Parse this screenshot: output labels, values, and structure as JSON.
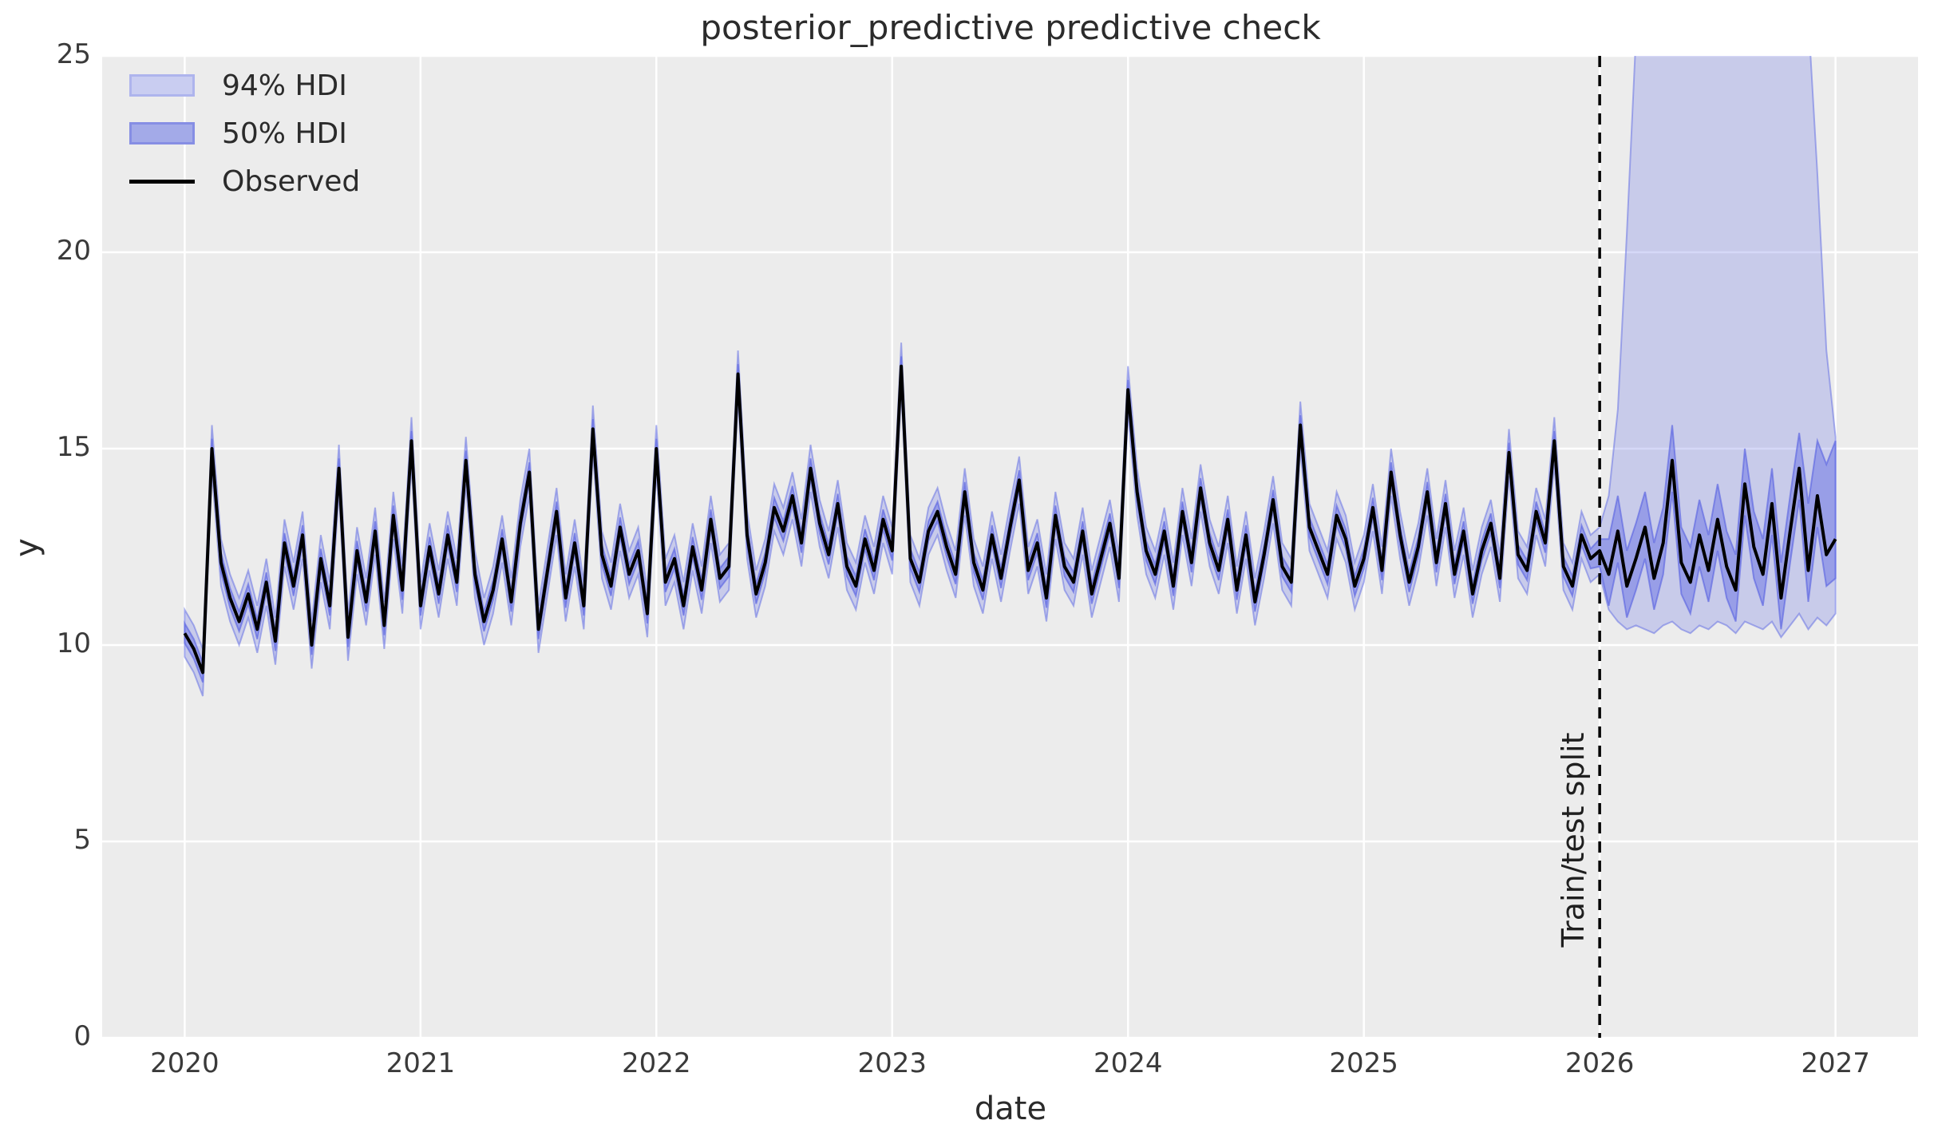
{
  "figure": {
    "title": "posterior_predictive predictive check",
    "xlabel": "date",
    "ylabel": "y"
  },
  "legend": {
    "items": [
      {
        "label": "94% HDI",
        "type": "patch"
      },
      {
        "label": "50% HDI",
        "type": "patch"
      },
      {
        "label": "Observed",
        "type": "line"
      }
    ]
  },
  "colors": {
    "figure_bg": "#ffffff",
    "axes_bg": "#ececec",
    "grid": "#ffffff",
    "observed": "#000000",
    "split_line": "#000000",
    "text": "#2b2b2b",
    "tick_text": "#3a3a3a",
    "hdi94_fill": "rgba(116,125,230,0.30)",
    "hdi94_edge": "rgba(104,114,228,0.55)",
    "hdi50_fill": "rgba(104,113,228,0.50)",
    "hdi50_edge": "rgba(92,102,226,0.65)",
    "legend94_fill": "#c9cdf1",
    "legend94_edge": "#aeb4ed",
    "legend50_fill": "#a3aae8",
    "legend50_edge": "#868ee4"
  },
  "chart_data": {
    "type": "line",
    "title": "posterior_predictive predictive check",
    "xlabel": "date",
    "ylabel": "y",
    "xlim": [
      2019.65,
      2027.35
    ],
    "ylim": [
      0,
      25
    ],
    "x_ticks": [
      2020,
      2021,
      2022,
      2023,
      2024,
      2025,
      2026,
      2027
    ],
    "y_ticks": [
      0,
      5,
      10,
      15,
      20,
      25
    ],
    "grid": true,
    "legend_position": "upper left",
    "split": {
      "x": 2026.0,
      "label": "Train/test split",
      "style": "dashed"
    },
    "observed": {
      "x_start": 2020.0,
      "x_step_years": 0.038461538,
      "values": [
        10.3,
        9.9,
        9.3,
        15.0,
        12.1,
        11.2,
        10.6,
        11.3,
        10.4,
        11.6,
        10.1,
        12.6,
        11.5,
        12.8,
        10.0,
        12.2,
        11.0,
        14.5,
        10.2,
        12.4,
        11.1,
        12.9,
        10.5,
        13.3,
        11.4,
        15.2,
        11.0,
        12.5,
        11.3,
        12.8,
        11.6,
        14.7,
        11.8,
        10.6,
        11.4,
        12.7,
        11.1,
        13.1,
        14.4,
        10.4,
        11.9,
        13.4,
        11.2,
        12.6,
        11.0,
        15.5,
        12.3,
        11.5,
        13.0,
        11.8,
        12.4,
        10.8,
        15.0,
        11.6,
        12.2,
        11.0,
        12.5,
        11.4,
        13.2,
        11.7,
        12.0,
        16.9,
        12.8,
        11.3,
        12.1,
        13.5,
        12.9,
        13.8,
        12.6,
        14.5,
        13.1,
        12.3,
        13.6,
        12.0,
        11.5,
        12.7,
        11.9,
        13.2,
        12.4,
        17.1,
        12.2,
        11.6,
        12.9,
        13.4,
        12.5,
        11.8,
        13.9,
        12.1,
        11.4,
        12.8,
        11.7,
        13.0,
        14.2,
        11.9,
        12.6,
        11.2,
        13.3,
        12.0,
        11.6,
        12.9,
        11.3,
        12.2,
        13.1,
        11.7,
        16.5,
        13.9,
        12.4,
        11.8,
        12.9,
        11.5,
        13.4,
        12.1,
        14.0,
        12.6,
        11.9,
        13.2,
        11.4,
        12.8,
        11.1,
        12.3,
        13.7,
        12.0,
        11.6,
        15.6,
        13.0,
        12.4,
        11.8,
        13.3,
        12.7,
        11.5,
        12.2,
        13.5,
        11.9,
        14.4,
        12.8,
        11.6,
        12.5,
        13.9,
        12.1,
        13.6,
        11.8,
        12.9,
        11.3,
        12.4,
        13.1,
        11.7,
        14.9,
        12.3,
        11.9,
        13.4,
        12.6,
        15.2,
        12.0,
        11.5,
        12.8,
        12.2,
        12.4,
        11.8,
        12.9,
        11.5,
        12.2,
        13.0,
        11.7,
        12.6,
        14.7,
        12.1,
        11.6,
        12.8,
        11.9,
        13.2,
        12.0,
        11.4,
        14.1,
        12.5,
        11.8,
        13.6,
        11.2,
        12.9,
        14.5,
        11.9,
        13.8,
        12.3,
        12.7
      ]
    },
    "hdi_94": {
      "train_halfwidth": 0.6,
      "test_start_index": 156,
      "test_lower": [
        11.8,
        10.9,
        10.6,
        10.4,
        10.5,
        10.4,
        10.3,
        10.5,
        10.6,
        10.4,
        10.3,
        10.5,
        10.4,
        10.6,
        10.5,
        10.3,
        10.6,
        10.5,
        10.4,
        10.6,
        10.2,
        10.5,
        10.8,
        10.4,
        10.7,
        10.5,
        10.8
      ],
      "test_upper": [
        13.0,
        13.8,
        16.0,
        20.5,
        25.5,
        28.0,
        28.5,
        28.5,
        28.5,
        28.0,
        28.5,
        28.0,
        28.5,
        28.0,
        28.5,
        28.0,
        28.5,
        28.0,
        28.5,
        28.0,
        28.5,
        27.5,
        27.0,
        26.0,
        22.0,
        17.5,
        15.3
      ]
    },
    "hdi_50": {
      "train_halfwidth": 0.25,
      "test_start_index": 156,
      "test_lower": [
        12.0,
        11.0,
        12.1,
        10.7,
        11.4,
        12.2,
        10.9,
        11.8,
        13.9,
        11.3,
        10.8,
        12.0,
        11.1,
        12.4,
        11.2,
        10.6,
        13.3,
        11.7,
        11.0,
        12.8,
        10.4,
        12.1,
        13.7,
        11.1,
        13.0,
        11.5,
        11.7
      ],
      "test_upper": [
        12.7,
        12.7,
        13.8,
        12.4,
        13.1,
        13.9,
        12.6,
        13.5,
        15.6,
        13.0,
        12.5,
        13.7,
        12.8,
        14.1,
        12.9,
        12.3,
        15.0,
        13.4,
        12.7,
        14.5,
        12.1,
        13.8,
        15.4,
        13.6,
        15.2,
        14.6,
        15.2
      ]
    }
  }
}
